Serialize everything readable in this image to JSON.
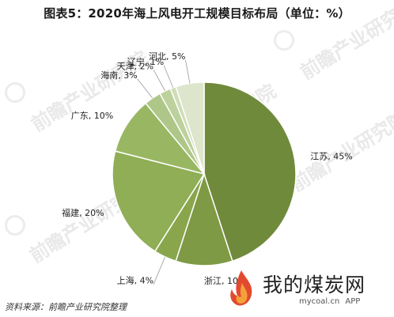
{
  "title": "图表5：2020年海上风电开工规模目标布局（单位：%）",
  "watermark": "前瞻产业研究院",
  "source": "资料来源：前瞻产业研究院整理",
  "brand": {
    "name": "我的煤炭网",
    "url": "mycoal.cn",
    "app_label": "APP"
  },
  "colors": {
    "江苏": "#6f8a3b",
    "浙江": "#7e9a45",
    "上海": "#89a64c",
    "福建": "#8fae55",
    "广东": "#99b763",
    "海南": "#aec788",
    "天津": "#bcd19c",
    "辽宁": "#cfdcb7",
    "河北": "#dde6cc",
    "slice_stroke": "#ffffff"
  },
  "chart_data": {
    "type": "pie",
    "title": "图表5：2020年海上风电开工规模目标布局（单位：%）",
    "unit": "%",
    "start_angle_deg": 0,
    "direction": "clockwise",
    "slices": [
      {
        "label": "江苏",
        "value": 45
      },
      {
        "label": "浙江",
        "value": 10
      },
      {
        "label": "上海",
        "value": 4
      },
      {
        "label": "福建",
        "value": 20
      },
      {
        "label": "广东",
        "value": 10
      },
      {
        "label": "海南",
        "value": 3
      },
      {
        "label": "天津",
        "value": 2
      },
      {
        "label": "辽宁",
        "value": 1
      },
      {
        "label": "河北",
        "value": 5
      }
    ]
  }
}
